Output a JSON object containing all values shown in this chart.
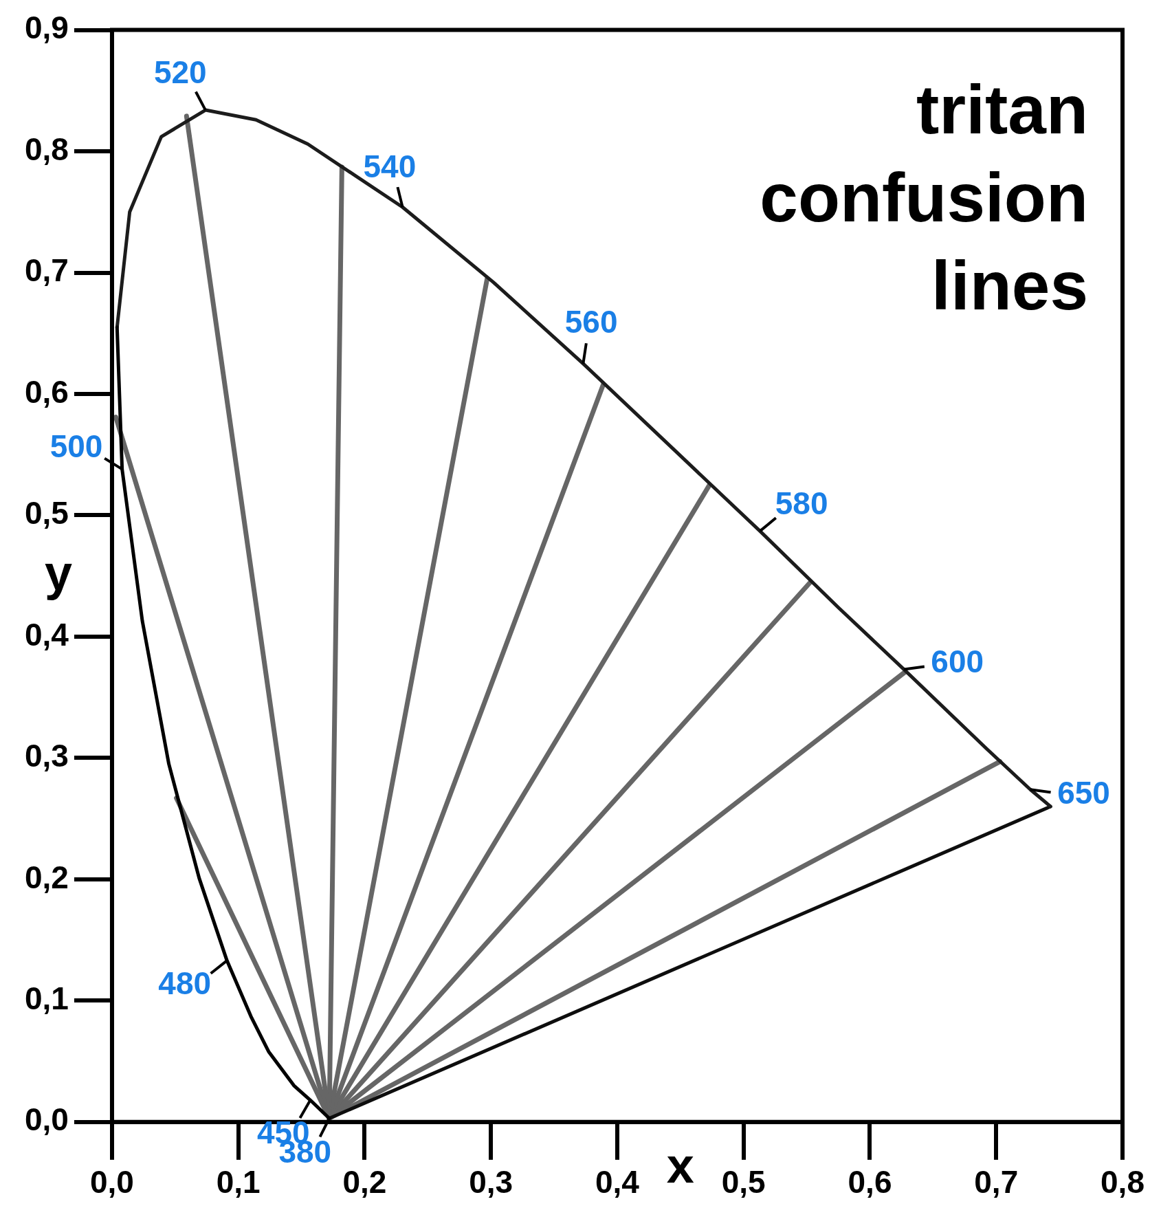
{
  "chart_data": {
    "type": "line",
    "title": "tritan confusion lines",
    "xlabel": "x",
    "ylabel": "y",
    "xlim": [
      0,
      0.8
    ],
    "ylim": [
      0,
      0.9
    ],
    "xticks": [
      {
        "value": 0,
        "label": "0,0"
      },
      {
        "value": 0.1,
        "label": "0,1"
      },
      {
        "value": 0.2,
        "label": "0,2"
      },
      {
        "value": 0.3,
        "label": "0,3"
      },
      {
        "value": 0.4,
        "label": "0,4"
      },
      {
        "value": 0.5,
        "label": "0,5"
      },
      {
        "value": 0.6,
        "label": "0,6"
      },
      {
        "value": 0.7,
        "label": "0,7"
      },
      {
        "value": 0.8,
        "label": "0,8"
      }
    ],
    "yticks": [
      {
        "value": 0,
        "label": "0,0"
      },
      {
        "value": 0.1,
        "label": "0,1"
      },
      {
        "value": 0.2,
        "label": "0,2"
      },
      {
        "value": 0.3,
        "label": "0,3"
      },
      {
        "value": 0.4,
        "label": "0,4"
      },
      {
        "value": 0.5,
        "label": "0,5"
      },
      {
        "value": 0.6,
        "label": "0,6"
      },
      {
        "value": 0.7,
        "label": "0,7"
      },
      {
        "value": 0.8,
        "label": "0,8"
      },
      {
        "value": 0.9,
        "label": "0,9"
      }
    ],
    "grid": false,
    "legend": false,
    "marker": "none",
    "line_style": "solid",
    "series": [
      {
        "color": "#000000",
        "x": [
          0.004,
          0.008,
          0.024,
          0.045,
          0.069,
          0.091,
          0.11,
          0.124,
          0.144,
          0.157,
          0.172
        ],
        "values": [
          0.655,
          0.538,
          0.413,
          0.295,
          0.201,
          0.133,
          0.087,
          0.058,
          0.03,
          0.018,
          0.003
        ]
      },
      {
        "color": "#1c1c1c",
        "x": [
          0.004,
          0.014,
          0.039,
          0.074,
          0.114,
          0.155,
          0.23,
          0.302,
          0.373,
          0.444,
          0.513,
          0.575,
          0.627,
          0.692,
          0.727,
          0.743
        ],
        "values": [
          0.655,
          0.75,
          0.812,
          0.834,
          0.826,
          0.806,
          0.754,
          0.692,
          0.625,
          0.555,
          0.487,
          0.424,
          0.373,
          0.308,
          0.274,
          0.26
        ]
      },
      {
        "color": "#0e0e0e",
        "x": [
          0.172,
          0.743
        ],
        "values": [
          0.003,
          0.26
        ]
      },
      {
        "color": "#666666",
        "x": [
          0.172,
          0.051
        ],
        "values": [
          0.003,
          0.267
        ]
      },
      {
        "color": "#666666",
        "x": [
          0.172,
          0.003
        ],
        "values": [
          0.003,
          0.581
        ]
      },
      {
        "color": "#666666",
        "x": [
          0.172,
          0.059
        ],
        "values": [
          0.003,
          0.829
        ]
      },
      {
        "color": "#666666",
        "x": [
          0.172,
          0.182
        ],
        "values": [
          0.003,
          0.787
        ]
      },
      {
        "color": "#666666",
        "x": [
          0.172,
          0.297
        ],
        "values": [
          0.003,
          0.695
        ]
      },
      {
        "color": "#666666",
        "x": [
          0.172,
          0.389
        ],
        "values": [
          0.003,
          0.608
        ]
      },
      {
        "color": "#666666",
        "x": [
          0.172,
          0.473
        ],
        "values": [
          0.003,
          0.525
        ]
      },
      {
        "color": "#666666",
        "x": [
          0.172,
          0.553
        ],
        "values": [
          0.003,
          0.445
        ]
      },
      {
        "color": "#666666",
        "x": [
          0.172,
          0.628
        ],
        "values": [
          0.003,
          0.371
        ]
      },
      {
        "color": "#666666",
        "x": [
          0.172,
          0.703
        ],
        "values": [
          0.003,
          0.297
        ]
      }
    ],
    "annotations": [
      {
        "text": "380",
        "x": 0.172,
        "y": 0.003
      },
      {
        "text": "450",
        "x": 0.157,
        "y": 0.018
      },
      {
        "text": "480",
        "x": 0.091,
        "y": 0.133
      },
      {
        "text": "500",
        "x": 0.008,
        "y": 0.538
      },
      {
        "text": "520",
        "x": 0.074,
        "y": 0.834
      },
      {
        "text": "540",
        "x": 0.23,
        "y": 0.754
      },
      {
        "text": "560",
        "x": 0.373,
        "y": 0.625
      },
      {
        "text": "580",
        "x": 0.513,
        "y": 0.487
      },
      {
        "text": "600",
        "x": 0.627,
        "y": 0.373
      },
      {
        "text": "650",
        "x": 0.727,
        "y": 0.274
      }
    ]
  }
}
